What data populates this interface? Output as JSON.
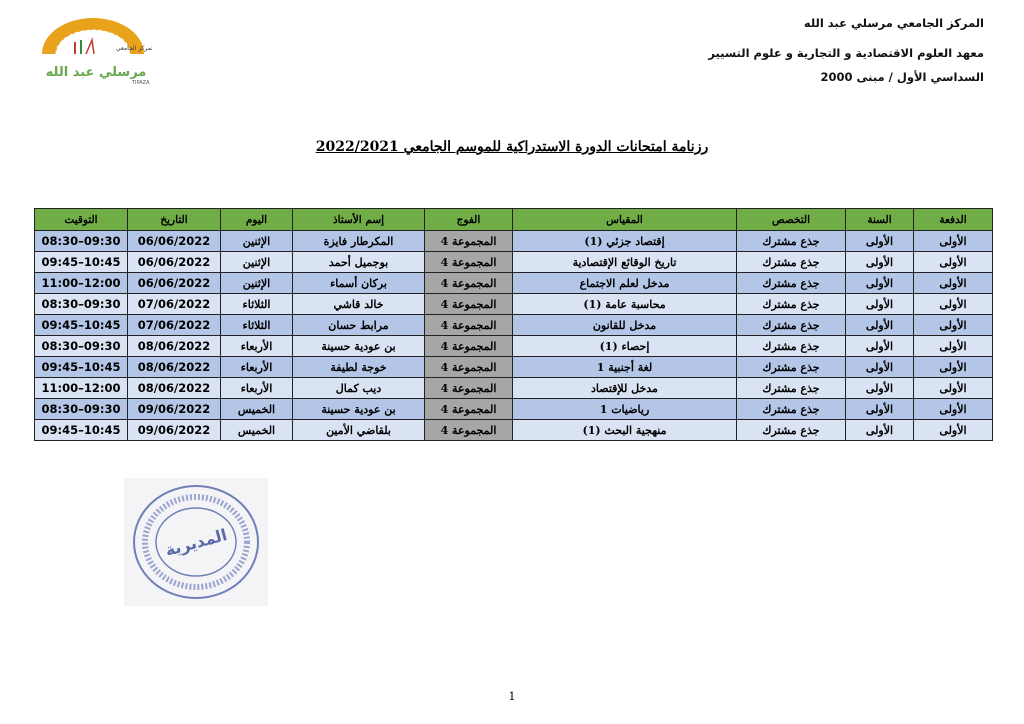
{
  "header": {
    "line1": "المركز الجامعي مرسلي عبد الله",
    "line2": "معهد العلوم الاقتصادية و التجارية و علوم التسيير",
    "line3": "السداسي الأول / مبنى 2000"
  },
  "logo": {
    "text_ar": "المركز الجامعي مرسلي عبد الله تيبازة",
    "text_fr": "CENTRE UNIVERSITAIRE MORSLI ABDELLAH TIPAZA"
  },
  "title": "رزنامة امتحانات الدورة الاستدراكية للموسم الجامعي 2022/2021",
  "table": {
    "columns": [
      "الدفعة",
      "السنة",
      "التخصص",
      "المقياس",
      "الفوج",
      "إسم الأستاذ",
      "اليوم",
      "التاريخ",
      "التوقيت"
    ],
    "rows": [
      [
        "الأولى",
        "الأولى",
        "جذع مشترك",
        "إقتصاد جزئي (1)",
        "المجموعة 4",
        "المكرطار فايزة",
        "الإثنين",
        "06/06/2022",
        "09:30–08:30"
      ],
      [
        "الأولى",
        "الأولى",
        "جذع مشترك",
        "تاريخ الوقائع الإقتصادية",
        "المجموعة 4",
        "بوجميل أحمد",
        "الإثنين",
        "06/06/2022",
        "10:45–09:45"
      ],
      [
        "الأولى",
        "الأولى",
        "جذع مشترك",
        "مدخل لعلم الاجتماع",
        "المجموعة 4",
        "بركان أسماء",
        "الإثنين",
        "06/06/2022",
        "12:00–11:00"
      ],
      [
        "الأولى",
        "الأولى",
        "جذع مشترك",
        "محاسبة عامة (1)",
        "المجموعة 4",
        "خالد قاشي",
        "الثلاثاء",
        "07/06/2022",
        "09:30–08:30"
      ],
      [
        "الأولى",
        "الأولى",
        "جذع مشترك",
        "مدخل للقانون",
        "المجموعة 4",
        "مرابط حسان",
        "الثلاثاء",
        "07/06/2022",
        "10:45–09:45"
      ],
      [
        "الأولى",
        "الأولى",
        "جذع مشترك",
        "إحصاء (1)",
        "المجموعة 4",
        "بن عودية حسينة",
        "الأربعاء",
        "08/06/2022",
        "09:30–08:30"
      ],
      [
        "الأولى",
        "الأولى",
        "جذع مشترك",
        "لغة أجنبية 1",
        "المجموعة 4",
        "خوجة لطيفة",
        "الأربعاء",
        "08/06/2022",
        "10:45–09:45"
      ],
      [
        "الأولى",
        "الأولى",
        "جذع مشترك",
        "مدخل للإقتصاد",
        "المجموعة 4",
        "ديب كمال",
        "الأربعاء",
        "08/06/2022",
        "12:00–11:00"
      ],
      [
        "الأولى",
        "الأولى",
        "جذع مشترك",
        "رياضيات 1",
        "المجموعة 4",
        "بن عودية حسينة",
        "الخميس",
        "09/06/2022",
        "09:30–08:30"
      ],
      [
        "الأولى",
        "الأولى",
        "جذع مشترك",
        "منهجية البحث (1)",
        "المجموعة 4",
        "بلقاضي الأمين",
        "الخميس",
        "09/06/2022",
        "10:45–09:45"
      ]
    ]
  },
  "stamp": {
    "center_text": "المديرية",
    "ring_text": "المركز الجامعي مرسلي عبد الله تيبازة معهد العلوم الاقتصادية والتجارية وعلوم التسيير"
  },
  "page_number": "1",
  "colors": {
    "header_green": "#70ad47",
    "row_dark": "#b4c6e7",
    "row_light": "#dae3f3",
    "group_gray": "#a6a6a6"
  }
}
